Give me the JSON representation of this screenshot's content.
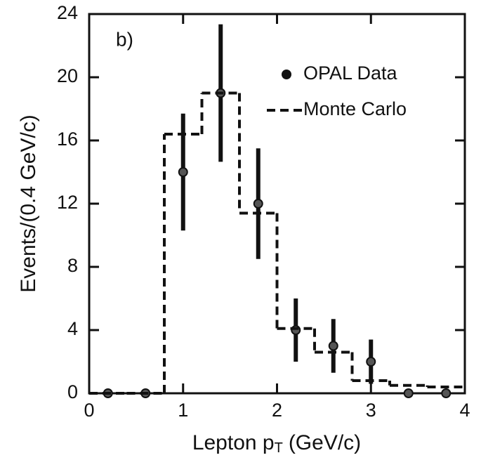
{
  "chart_data": {
    "type": "errorbar",
    "annotation": "b)",
    "xlabel": {
      "text": "Lepton p",
      "sub": "T",
      "unit": "(GeV/c)"
    },
    "ylabel": "Events/(0.4 GeV/c)",
    "xlim": [
      0,
      4
    ],
    "ylim": [
      0,
      24
    ],
    "xticks": [
      0,
      1,
      2,
      3,
      4
    ],
    "yticks": [
      0,
      4,
      8,
      12,
      16,
      20,
      24
    ],
    "legend": "upper right",
    "series": [
      {
        "name": "OPAL Data",
        "type": "errorbar",
        "color": "#111111",
        "x": [
          0.2,
          0.6,
          1.0,
          1.4,
          1.8,
          2.2,
          2.6,
          3.0,
          3.4,
          3.8
        ],
        "values": [
          0,
          0,
          14,
          19,
          12,
          4,
          3,
          2,
          0,
          0
        ],
        "errors": [
          0,
          0,
          3.7,
          4.35,
          3.5,
          2,
          1.7,
          1.4,
          0,
          0
        ]
      },
      {
        "name": "Monte Carlo",
        "type": "step",
        "color": "#111111",
        "bins": [
          0,
          0.4,
          0.8,
          1.2,
          1.6,
          2.0,
          2.4,
          2.8,
          3.2,
          3.6,
          4.0
        ],
        "values": [
          0,
          0,
          16.4,
          19,
          11.4,
          4.1,
          2.6,
          0.8,
          0.5,
          0.4
        ]
      }
    ]
  }
}
